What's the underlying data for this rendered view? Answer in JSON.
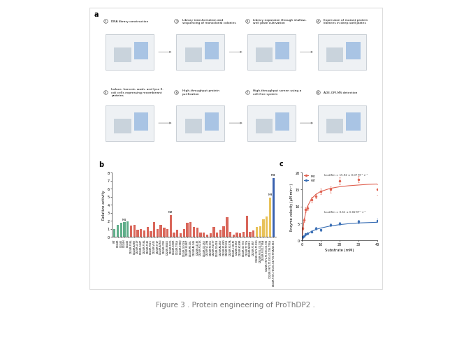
{
  "caption": "Figure 3 . Protein engineering of ProThDP2 .",
  "panel_a": {
    "panel": "a",
    "steps": [
      {
        "number": 1,
        "text": "DNA library construction"
      },
      {
        "number": 2,
        "text": "Library transformation and sequencing of monoclonal colonies"
      },
      {
        "number": 3,
        "text": "Library expansion through shallow-well plate cultivation"
      },
      {
        "number": 4,
        "text": "Expression of mutant protein libraries in deep-well plates"
      },
      {
        "number": 5,
        "text": "Induce, harvest, wash, and lyse E. coli cells expressing recombinant proteins"
      },
      {
        "number": 6,
        "text": "High-throughput protein purification"
      },
      {
        "number": 7,
        "text": "High-throughput screen using a cell-free system"
      },
      {
        "number": 8,
        "text": "ADE-OPI-MS detection"
      }
    ]
  },
  "chart_data": [
    {
      "panel": "b",
      "type": "bar",
      "y_label": "Relative activity",
      "categories": [
        "WT",
        "D424R",
        "D424K",
        "D424H",
        "D424S",
        "D424R-P36L",
        "D424R-A38V",
        "D424R-L41F",
        "D424R-S44T",
        "D424R-F58L",
        "D424R-F58I",
        "D424R-T62S",
        "D424R-V65I",
        "D424R-Y71F",
        "D424R-A76G",
        "D424R-I79V",
        "D424R-N82D",
        "D424R-F87L",
        "D424R-K90R",
        "D424R-T95A",
        "D424R-E98Q",
        "D424R-G102A",
        "D424R-S106T",
        "D424R-M110L",
        "D424R-A114S",
        "D424R-L118I",
        "D424R-R121K",
        "D424R-Q125E",
        "D424R-V129A",
        "D424R-T133S",
        "D424R-H137Y",
        "D424R-D141N",
        "D424R-A145V",
        "D424R-E149D",
        "D424R-T153G",
        "D424R-S157A",
        "D424R-L161M",
        "D424R-I165V",
        "D424R-K169R",
        "D424R-G173S",
        "D424R-T177A",
        "D424R-N181S",
        "D424R-F185Y",
        "D424R-F87L-T153G",
        "D424R-F87L-G173S",
        "D424R-F87L-T95A",
        "D424R-F87L-T153G-G173S",
        "D424R-F87L-T153G-G173S-T95A",
        "D424R-F87L-T153G-G173S-T95A-N181S"
      ],
      "values": [
        1.0,
        1.5,
        1.7,
        1.8,
        1.9,
        1.4,
        1.5,
        0.9,
        1.0,
        0.8,
        1.2,
        0.7,
        1.8,
        1.0,
        1.5,
        1.1,
        1.0,
        2.7,
        0.5,
        0.9,
        0.4,
        1.0,
        1.7,
        1.8,
        1.2,
        1.1,
        0.5,
        0.5,
        0.3,
        0.4,
        1.2,
        0.5,
        0.9,
        1.3,
        2.4,
        0.6,
        0.3,
        0.5,
        0.4,
        0.6,
        2.6,
        0.6,
        0.8,
        1.2,
        1.3,
        2.2,
        2.5,
        4.9,
        7.3
      ],
      "colors": [
        "#5fae8a",
        "#5fae8a",
        "#5fae8a",
        "#5fae8a",
        "#5fae8a",
        "#d9665a",
        "#d9665a",
        "#d9665a",
        "#d9665a",
        "#d9665a",
        "#d9665a",
        "#d9665a",
        "#d9665a",
        "#d9665a",
        "#d9665a",
        "#d9665a",
        "#d9665a",
        "#d9665a",
        "#d9665a",
        "#d9665a",
        "#d9665a",
        "#d9665a",
        "#d9665a",
        "#d9665a",
        "#d9665a",
        "#d9665a",
        "#d9665a",
        "#d9665a",
        "#d9665a",
        "#d9665a",
        "#d9665a",
        "#d9665a",
        "#d9665a",
        "#d9665a",
        "#d9665a",
        "#d9665a",
        "#d9665a",
        "#d9665a",
        "#d9665a",
        "#d9665a",
        "#d9665a",
        "#d9665a",
        "#d9665a",
        "#e8c25a",
        "#e8c25a",
        "#e8c25a",
        "#e8c25a",
        "#e8c25a",
        "#3a62b0"
      ],
      "annotations": [
        {
          "text": "M1",
          "category": "D424H"
        },
        {
          "text": "M2",
          "category": "D424R-F87L"
        },
        {
          "text": "M3",
          "category": "D424R-F87L-T153G-G173S-T95A"
        },
        {
          "text": "M4",
          "category": "D424R-F87L-T153G-G173S-T95A-N181S"
        }
      ],
      "ylim": [
        0,
        8
      ],
      "yticks": [
        0,
        1,
        2,
        3,
        4,
        5,
        6,
        7,
        8
      ]
    },
    {
      "panel": "c",
      "type": "line",
      "x_label": "Substrate (mM)",
      "y_label": "Enzyme velocity (μM min⁻¹)",
      "xlim": [
        0,
        40
      ],
      "xticks": [
        0,
        10,
        20,
        30,
        40
      ],
      "ylim": [
        0,
        20
      ],
      "yticks": [
        0,
        5,
        10,
        15,
        20
      ],
      "legend": "upper left",
      "series": [
        {
          "name": "M4",
          "color": "#e0604f",
          "marker": "o",
          "line_style": "solid",
          "annotation": "kcat/Km = 15.92 ± 0.07 M⁻¹ s⁻¹",
          "x": [
            0.5,
            1,
            2,
            3,
            5,
            7.5,
            10,
            15,
            20,
            30,
            40
          ],
          "values": [
            3.5,
            6,
            9,
            9.5,
            12,
            13,
            14.5,
            15,
            17.5,
            18,
            15
          ],
          "errors": [
            0.5,
            0.6,
            0.7,
            0.6,
            0.8,
            0.7,
            0.8,
            0.9,
            1.0,
            0.9,
            1.5
          ],
          "fit_x": [
            0,
            1,
            2,
            3,
            5,
            7.5,
            10,
            15,
            20,
            25,
            30,
            35,
            40
          ],
          "fit_values": [
            0,
            5.2,
            8.2,
            10,
            12.2,
            13.6,
            14.4,
            15.3,
            15.8,
            16.1,
            16.3,
            16.5,
            16.6
          ]
        },
        {
          "name": "WT",
          "color": "#3a6fb5",
          "marker": "o",
          "line_style": "solid",
          "annotation": "kcat/Km = 0.61 ± 0.02 M⁻¹ s⁻¹",
          "x": [
            0.5,
            1,
            2,
            3,
            5,
            7.5,
            10,
            15,
            20,
            30,
            40
          ],
          "values": [
            1.0,
            1.2,
            1.8,
            2.0,
            2.5,
            3.5,
            3.0,
            4.5,
            5.0,
            5.5,
            5.8
          ],
          "errors": [
            0.2,
            0.2,
            0.3,
            0.3,
            0.3,
            0.4,
            0.3,
            0.4,
            0.4,
            0.5,
            0.5
          ],
          "fit_x": [
            0,
            1,
            2,
            3,
            5,
            7.5,
            10,
            15,
            20,
            25,
            30,
            35,
            40
          ],
          "fit_values": [
            0,
            0.8,
            1.4,
            1.9,
            2.6,
            3.2,
            3.6,
            4.2,
            4.6,
            4.9,
            5.1,
            5.2,
            5.3
          ]
        }
      ]
    }
  ]
}
